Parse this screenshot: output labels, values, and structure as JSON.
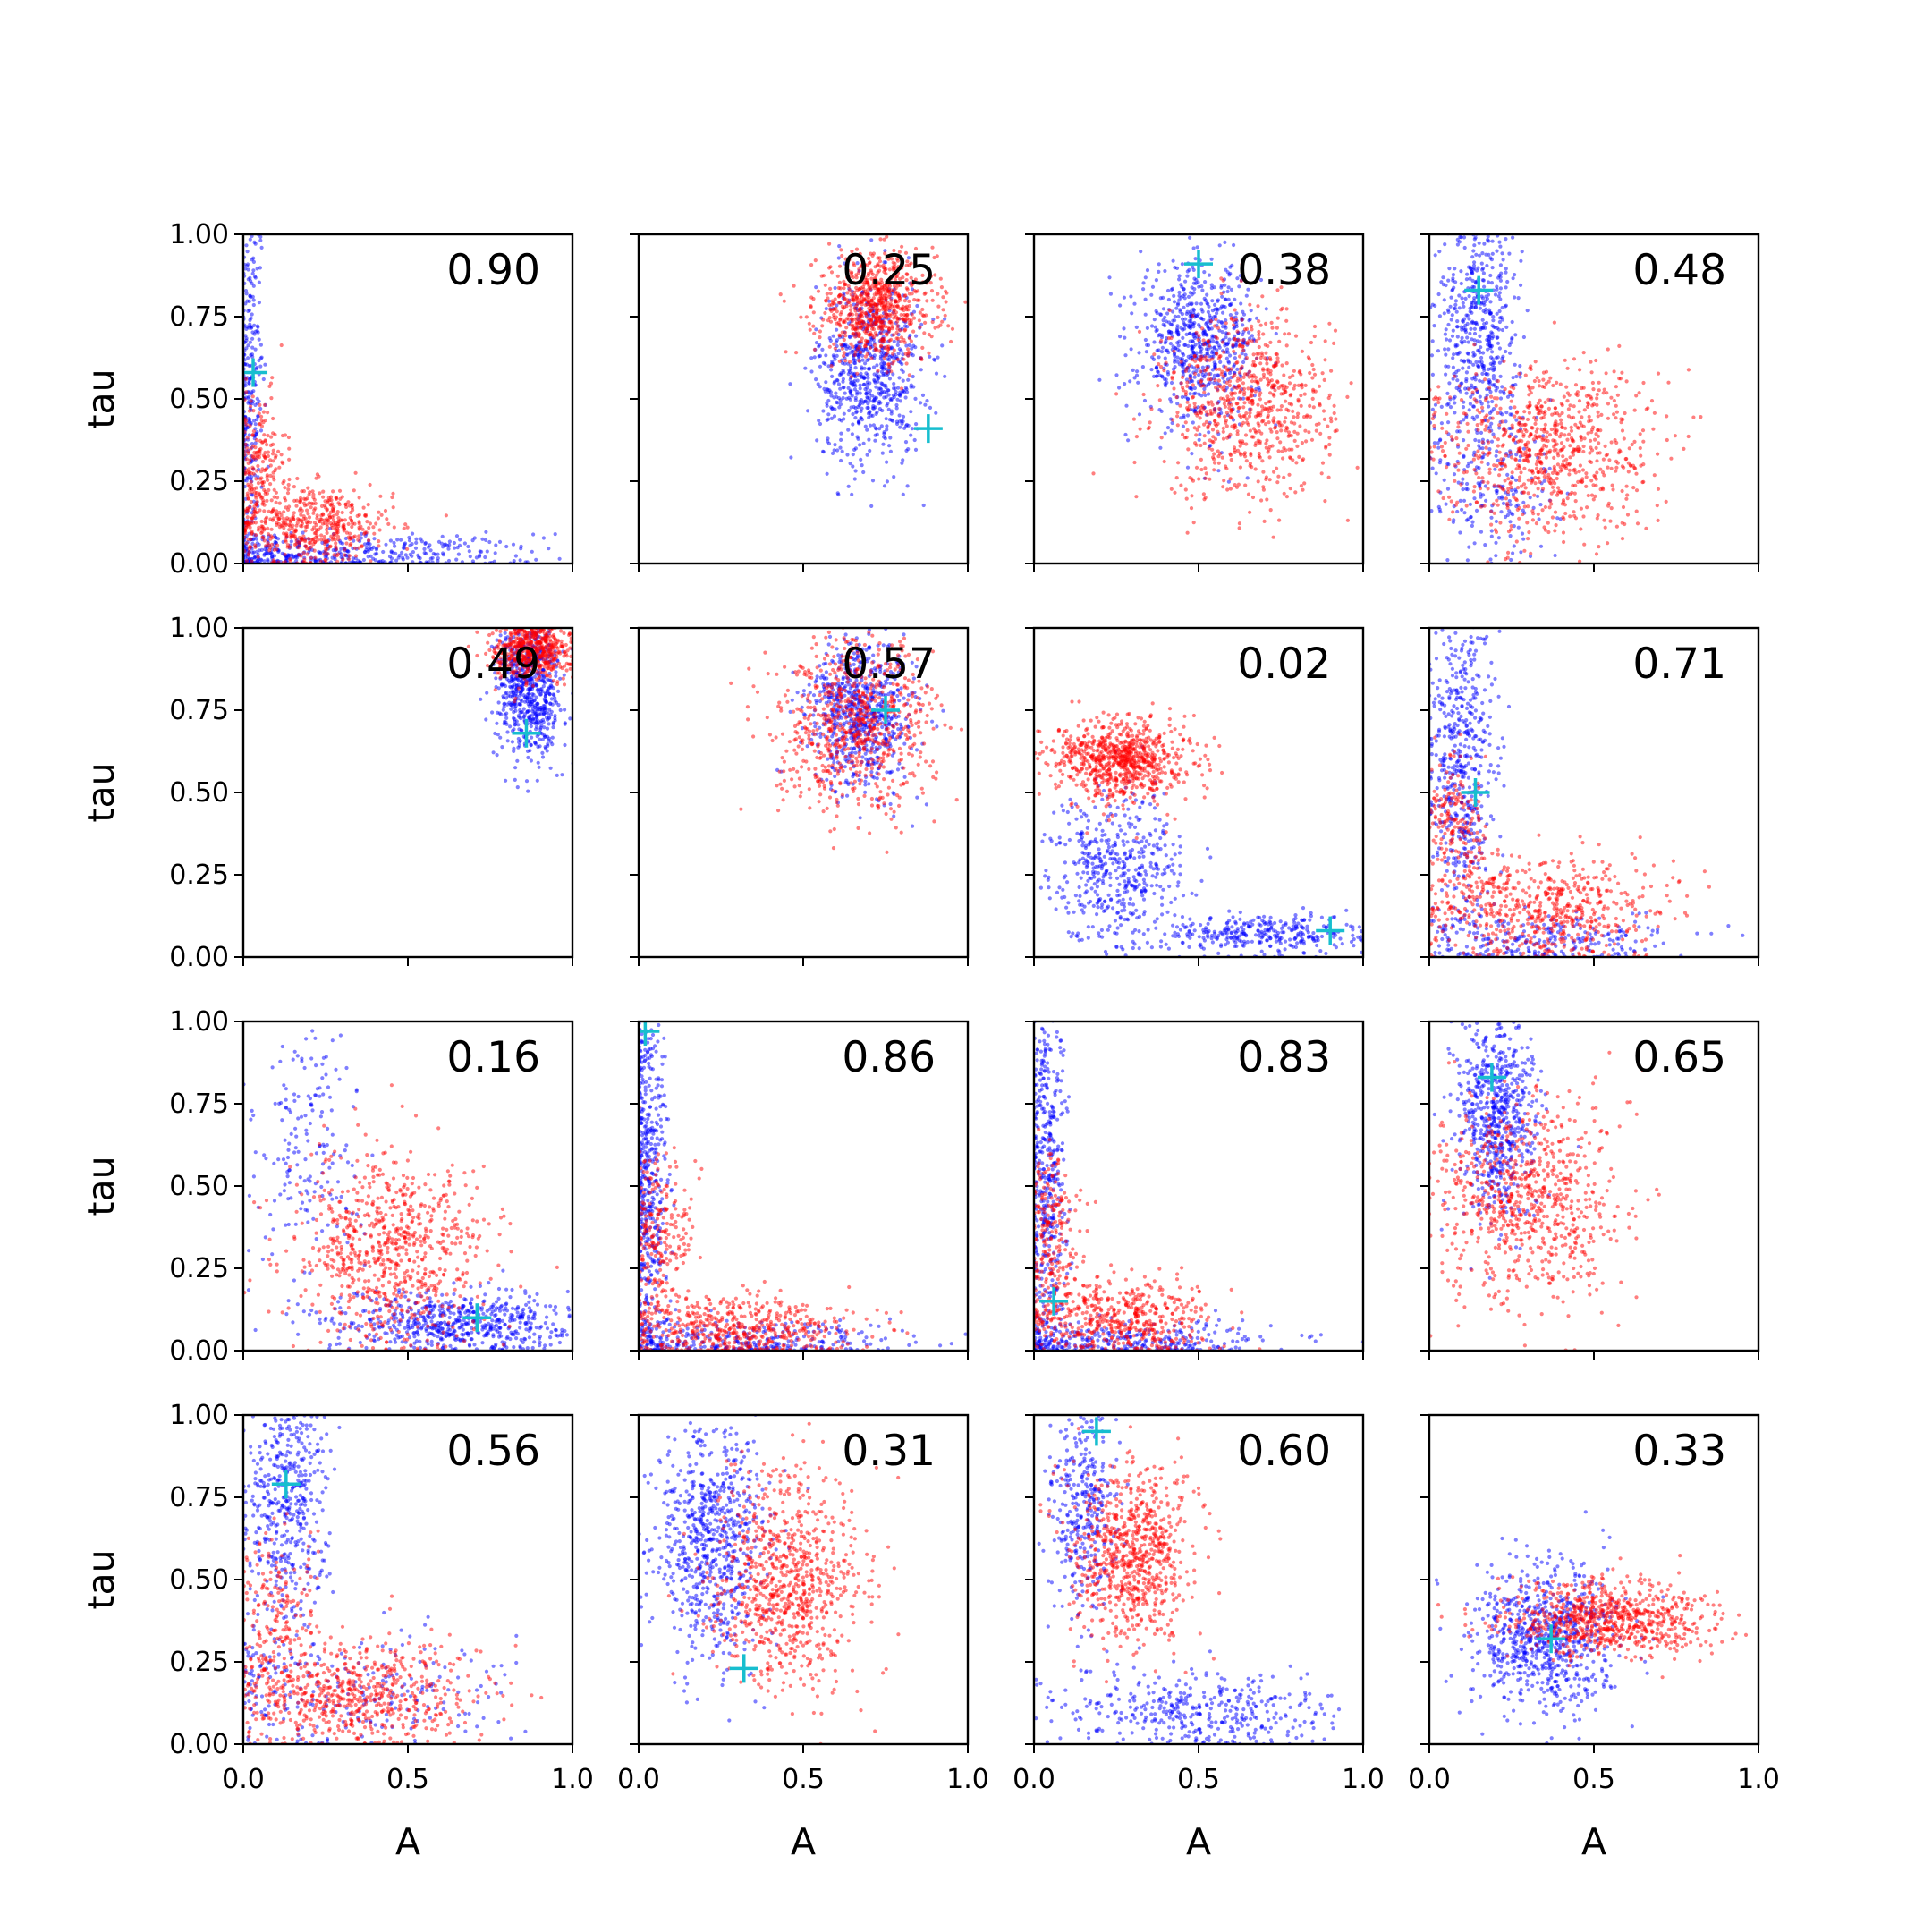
{
  "colors": {
    "background": "#ffffff",
    "axes": "#000000",
    "series_blue": "#0000ff",
    "series_red": "#ff0000",
    "marker_truth": "#17becf"
  },
  "chart_data": {
    "type": "scatter",
    "layout": "4x4 grid of panels",
    "shared_axes": {
      "xlabel": "A",
      "ylabel": "tau",
      "xlim": [
        0.0,
        1.0
      ],
      "ylim": [
        0.0,
        1.0
      ],
      "xticks": [
        "0.0",
        "0.5",
        "1.0"
      ],
      "yticks": [
        "0.00",
        "0.25",
        "0.50",
        "0.75",
        "1.00"
      ]
    },
    "grid": false,
    "legend": "none",
    "series_styles": [
      {
        "color": "#0000ff",
        "marker": "small dot"
      },
      {
        "color": "#ff0000",
        "marker": "small dot"
      },
      {
        "color": "#17becf",
        "marker": "plus"
      }
    ],
    "panels": [
      {
        "label": "0.90",
        "truth": [
          0.03,
          0.58
        ],
        "blue": [
          {
            "cx": 0.02,
            "cy": 0.55,
            "sx": 0.02,
            "sy": 0.35,
            "n": 300
          },
          {
            "cx": 0.3,
            "cy": 0.03,
            "sx": 0.3,
            "sy": 0.03,
            "n": 420
          }
        ],
        "red": [
          {
            "cx": 0.05,
            "cy": 0.32,
            "sx": 0.04,
            "sy": 0.1,
            "n": 180
          },
          {
            "cx": 0.2,
            "cy": 0.12,
            "sx": 0.13,
            "sy": 0.06,
            "n": 520
          }
        ]
      },
      {
        "label": "0.25",
        "truth": [
          0.88,
          0.41
        ],
        "blue": [
          {
            "cx": 0.7,
            "cy": 0.58,
            "sx": 0.08,
            "sy": 0.14,
            "n": 700
          }
        ],
        "red": [
          {
            "cx": 0.72,
            "cy": 0.78,
            "sx": 0.09,
            "sy": 0.08,
            "n": 750
          }
        ]
      },
      {
        "label": "0.38",
        "truth": [
          0.5,
          0.91
        ],
        "blue": [
          {
            "cx": 0.5,
            "cy": 0.67,
            "sx": 0.09,
            "sy": 0.12,
            "n": 700
          }
        ],
        "red": [
          {
            "cx": 0.65,
            "cy": 0.48,
            "sx": 0.13,
            "sy": 0.14,
            "n": 750
          }
        ]
      },
      {
        "label": "0.48",
        "truth": [
          0.15,
          0.83
        ],
        "blue": [
          {
            "cx": 0.15,
            "cy": 0.72,
            "sx": 0.06,
            "sy": 0.2,
            "n": 550
          },
          {
            "cx": 0.2,
            "cy": 0.25,
            "sx": 0.1,
            "sy": 0.15,
            "n": 200
          }
        ],
        "red": [
          {
            "cx": 0.35,
            "cy": 0.35,
            "sx": 0.16,
            "sy": 0.13,
            "n": 800
          }
        ]
      },
      {
        "label": "0.49",
        "truth": [
          0.86,
          0.68
        ],
        "blue": [
          {
            "cx": 0.87,
            "cy": 0.82,
            "sx": 0.05,
            "sy": 0.11,
            "n": 700
          }
        ],
        "red": [
          {
            "cx": 0.88,
            "cy": 0.94,
            "sx": 0.06,
            "sy": 0.05,
            "n": 600
          }
        ]
      },
      {
        "label": "0.57",
        "truth": [
          0.75,
          0.75
        ],
        "blue": [
          {
            "cx": 0.68,
            "cy": 0.74,
            "sx": 0.08,
            "sy": 0.11,
            "n": 700
          }
        ],
        "red": [
          {
            "cx": 0.66,
            "cy": 0.7,
            "sx": 0.12,
            "sy": 0.13,
            "n": 750
          }
        ]
      },
      {
        "label": "0.02",
        "truth": [
          0.9,
          0.08
        ],
        "blue": [
          {
            "cx": 0.25,
            "cy": 0.28,
            "sx": 0.1,
            "sy": 0.11,
            "n": 450
          },
          {
            "cx": 0.7,
            "cy": 0.07,
            "sx": 0.18,
            "sy": 0.03,
            "n": 350
          }
        ],
        "red": [
          {
            "cx": 0.27,
            "cy": 0.6,
            "sx": 0.1,
            "sy": 0.06,
            "n": 800
          }
        ]
      },
      {
        "label": "0.71",
        "truth": [
          0.14,
          0.5
        ],
        "blue": [
          {
            "cx": 0.1,
            "cy": 0.6,
            "sx": 0.05,
            "sy": 0.25,
            "n": 550
          },
          {
            "cx": 0.35,
            "cy": 0.05,
            "sx": 0.2,
            "sy": 0.04,
            "n": 250
          }
        ],
        "red": [
          {
            "cx": 0.08,
            "cy": 0.4,
            "sx": 0.05,
            "sy": 0.1,
            "n": 180
          },
          {
            "cx": 0.35,
            "cy": 0.15,
            "sx": 0.18,
            "sy": 0.08,
            "n": 600
          }
        ]
      },
      {
        "label": "0.16",
        "truth": [
          0.71,
          0.1
        ],
        "blue": [
          {
            "cx": 0.2,
            "cy": 0.6,
            "sx": 0.08,
            "sy": 0.2,
            "n": 180
          },
          {
            "cx": 0.65,
            "cy": 0.08,
            "sx": 0.2,
            "sy": 0.05,
            "n": 620
          }
        ],
        "red": [
          {
            "cx": 0.45,
            "cy": 0.3,
            "sx": 0.15,
            "sy": 0.15,
            "n": 750
          }
        ]
      },
      {
        "label": "0.86",
        "truth": [
          0.02,
          0.97
        ],
        "blue": [
          {
            "cx": 0.03,
            "cy": 0.55,
            "sx": 0.03,
            "sy": 0.3,
            "n": 500
          },
          {
            "cx": 0.3,
            "cy": 0.03,
            "sx": 0.25,
            "sy": 0.03,
            "n": 300
          }
        ],
        "red": [
          {
            "cx": 0.06,
            "cy": 0.35,
            "sx": 0.05,
            "sy": 0.12,
            "n": 220
          },
          {
            "cx": 0.3,
            "cy": 0.07,
            "sx": 0.18,
            "sy": 0.05,
            "n": 500
          }
        ]
      },
      {
        "label": "0.83",
        "truth": [
          0.06,
          0.15
        ],
        "blue": [
          {
            "cx": 0.04,
            "cy": 0.55,
            "sx": 0.03,
            "sy": 0.3,
            "n": 450
          },
          {
            "cx": 0.3,
            "cy": 0.03,
            "sx": 0.25,
            "sy": 0.03,
            "n": 300
          }
        ],
        "red": [
          {
            "cx": 0.05,
            "cy": 0.35,
            "sx": 0.04,
            "sy": 0.12,
            "n": 220
          },
          {
            "cx": 0.25,
            "cy": 0.1,
            "sx": 0.15,
            "sy": 0.06,
            "n": 500
          }
        ]
      },
      {
        "label": "0.65",
        "truth": [
          0.19,
          0.83
        ],
        "blue": [
          {
            "cx": 0.2,
            "cy": 0.72,
            "sx": 0.06,
            "sy": 0.16,
            "n": 650
          }
        ],
        "red": [
          {
            "cx": 0.3,
            "cy": 0.45,
            "sx": 0.14,
            "sy": 0.16,
            "n": 750
          }
        ]
      },
      {
        "label": "0.56",
        "truth": [
          0.13,
          0.79
        ],
        "blue": [
          {
            "cx": 0.13,
            "cy": 0.72,
            "sx": 0.06,
            "sy": 0.2,
            "n": 500
          },
          {
            "cx": 0.3,
            "cy": 0.15,
            "sx": 0.25,
            "sy": 0.1,
            "n": 250
          }
        ],
        "red": [
          {
            "cx": 0.1,
            "cy": 0.35,
            "sx": 0.06,
            "sy": 0.15,
            "n": 200
          },
          {
            "cx": 0.35,
            "cy": 0.15,
            "sx": 0.18,
            "sy": 0.08,
            "n": 600
          }
        ]
      },
      {
        "label": "0.31",
        "truth": [
          0.32,
          0.23
        ],
        "blue": [
          {
            "cx": 0.22,
            "cy": 0.62,
            "sx": 0.08,
            "sy": 0.18,
            "n": 700
          }
        ],
        "red": [
          {
            "cx": 0.45,
            "cy": 0.5,
            "sx": 0.12,
            "sy": 0.16,
            "n": 800
          }
        ]
      },
      {
        "label": "0.60",
        "truth": [
          0.19,
          0.95
        ],
        "blue": [
          {
            "cx": 0.15,
            "cy": 0.72,
            "sx": 0.05,
            "sy": 0.17,
            "n": 350
          },
          {
            "cx": 0.5,
            "cy": 0.1,
            "sx": 0.2,
            "sy": 0.06,
            "n": 400
          }
        ],
        "red": [
          {
            "cx": 0.3,
            "cy": 0.58,
            "sx": 0.09,
            "sy": 0.13,
            "n": 750
          }
        ]
      },
      {
        "label": "0.33",
        "truth": [
          0.37,
          0.32
        ],
        "blue": [
          {
            "cx": 0.35,
            "cy": 0.32,
            "sx": 0.11,
            "sy": 0.11,
            "n": 750
          }
        ],
        "red": [
          {
            "cx": 0.55,
            "cy": 0.38,
            "sx": 0.15,
            "sy": 0.06,
            "n": 750
          }
        ]
      }
    ]
  }
}
